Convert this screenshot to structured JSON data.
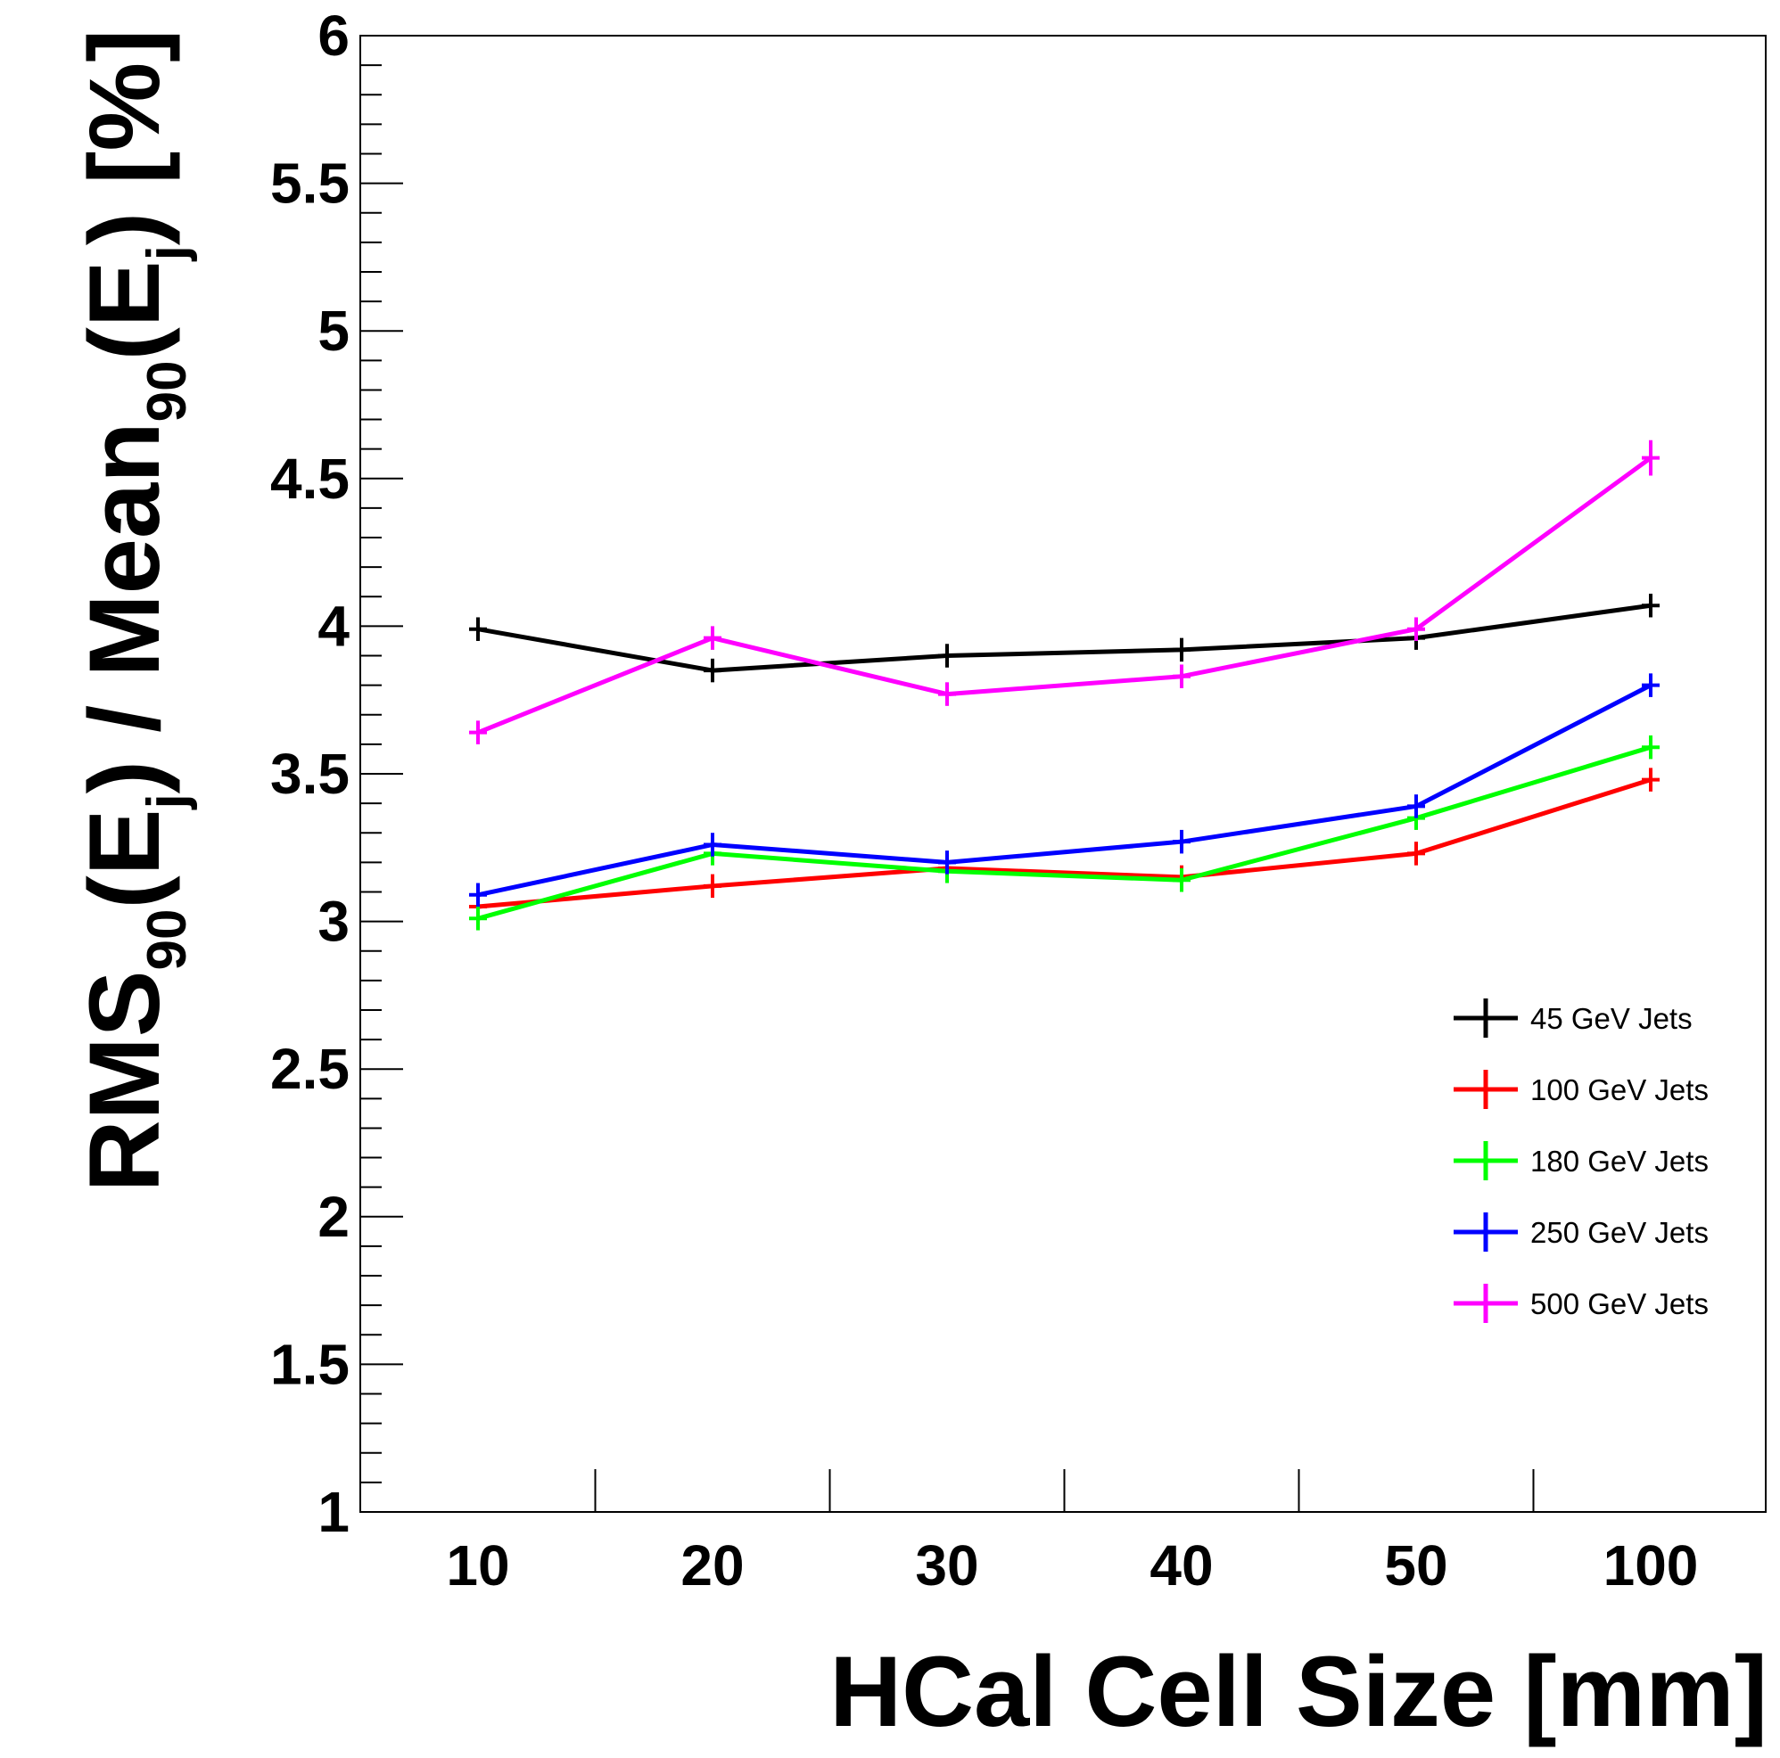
{
  "chart_data": {
    "type": "line",
    "title": "",
    "xlabel": "HCal Cell Size [mm]",
    "ylabel": {
      "parts": [
        {
          "text": "RMS",
          "sub": "90"
        },
        {
          "text": "(E",
          "sub": "j"
        },
        {
          "text": ") / Mean",
          "sub": "90"
        },
        {
          "text": "(E",
          "sub": "j"
        },
        {
          "text": ") [%]",
          "sub": ""
        }
      ]
    },
    "categories": [
      "10",
      "20",
      "30",
      "40",
      "50",
      "100"
    ],
    "ylim": [
      1,
      6
    ],
    "yticks": [
      "1",
      "1.5",
      "2",
      "2.5",
      "3",
      "3.5",
      "4",
      "4.5",
      "5",
      "5.5",
      "6"
    ],
    "grid": false,
    "legend_position": "right",
    "series": [
      {
        "name": "45 GeV Jets",
        "color": "#000000",
        "values": [
          3.99,
          3.85,
          3.9,
          3.92,
          3.96,
          4.07
        ],
        "errors": [
          0.04,
          0.04,
          0.04,
          0.04,
          0.04,
          0.04
        ]
      },
      {
        "name": "100 GeV Jets",
        "color": "#ff0000",
        "values": [
          3.05,
          3.12,
          3.18,
          3.15,
          3.23,
          3.48
        ],
        "errors": [
          0.04,
          0.04,
          0.04,
          0.04,
          0.04,
          0.04
        ]
      },
      {
        "name": "180 GeV Jets",
        "color": "#00ff00",
        "values": [
          3.01,
          3.23,
          3.17,
          3.14,
          3.35,
          3.59
        ],
        "errors": [
          0.04,
          0.04,
          0.04,
          0.04,
          0.04,
          0.04
        ]
      },
      {
        "name": "250 GeV Jets",
        "color": "#0000ff",
        "values": [
          3.09,
          3.26,
          3.2,
          3.27,
          3.39,
          3.8
        ],
        "errors": [
          0.04,
          0.04,
          0.04,
          0.04,
          0.04,
          0.04
        ]
      },
      {
        "name": "500 GeV Jets",
        "color": "#ff00ff",
        "values": [
          3.64,
          3.96,
          3.77,
          3.83,
          3.99,
          4.57
        ],
        "errors": [
          0.04,
          0.04,
          0.04,
          0.04,
          0.04,
          0.06
        ]
      }
    ]
  }
}
